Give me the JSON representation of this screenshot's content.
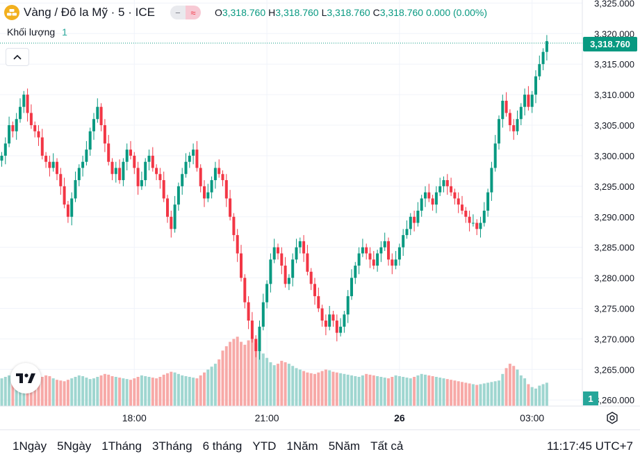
{
  "legend": {
    "symbol_title": "Vàng / Đô la Mỹ · 5 · ICE",
    "o_label": "O",
    "o_value": "3,318.760",
    "h_label": "H",
    "h_value": "3,318.760",
    "l_label": "L",
    "l_value": "3,318.760",
    "c_label": "C",
    "c_value": "3,318.760",
    "change": "0.000 (0.00%)",
    "pill_left": "−",
    "pill_right": "≈"
  },
  "volume_legend": {
    "label": "Khối lượng",
    "value": "1"
  },
  "last_price_tag": "3,318.760",
  "volume_tag": "1",
  "time_ranges": [
    "1Ngày",
    "5Ngày",
    "1Tháng",
    "3Tháng",
    "6 tháng",
    "YTD",
    "1Năm",
    "5Năm",
    "Tất cả"
  ],
  "clock": "11:17:45 UTC+7",
  "icons": {
    "logo": "gold-symbol-icon",
    "collapse": "chevron-up-icon",
    "brand": "tradingview-logo",
    "settings": "gear-icon"
  },
  "colors": {
    "up": "#089981",
    "down": "#f23645",
    "up_volume": "#9fd6d0",
    "down_volume": "#f7a9a7",
    "grid": "#f0f3fa"
  },
  "chart_data": {
    "type": "candlestick",
    "interval": "5",
    "y_ticks": [
      "3,260.000",
      "3,265.000",
      "3,270.000",
      "3,275.000",
      "3,280.000",
      "3,285.000",
      "3,290.000",
      "3,295.000",
      "3,300.000",
      "3,305.000",
      "3,310.000",
      "3,315.000",
      "3,320.000",
      "3,325.000"
    ],
    "ylim": [
      3259,
      3325.5
    ],
    "x_ticks": [
      "18:00",
      "21:00",
      "26",
      "03:00"
    ],
    "x_tick_bar_index": [
      36,
      72,
      108,
      144
    ],
    "closes": [
      3300,
      3302,
      3305,
      3304,
      3306,
      3308,
      3310,
      3307,
      3305,
      3304,
      3303,
      3300,
      3299,
      3298,
      3299,
      3297,
      3295,
      3292,
      3290,
      3293,
      3296,
      3298,
      3299,
      3301,
      3304,
      3306,
      3308,
      3305,
      3302,
      3299,
      3297,
      3298,
      3296,
      3299,
      3301,
      3300,
      3298,
      3295,
      3296,
      3299,
      3300,
      3298,
      3297,
      3296,
      3293,
      3290,
      3288,
      3292,
      3295,
      3297,
      3299,
      3300,
      3301,
      3298,
      3295,
      3293,
      3294,
      3296,
      3298,
      3297,
      3296,
      3293,
      3290,
      3287,
      3284,
      3280,
      3276,
      3273,
      3270,
      3268,
      3272,
      3276,
      3279,
      3283,
      3285,
      3284,
      3282,
      3279,
      3280,
      3283,
      3285,
      3286,
      3284,
      3281,
      3279,
      3277,
      3275,
      3273,
      3272,
      3274,
      3273,
      3271,
      3272,
      3274,
      3277,
      3280,
      3282,
      3284,
      3285,
      3284,
      3283,
      3282,
      3284,
      3285,
      3286,
      3283,
      3282,
      3283,
      3285,
      3287,
      3288,
      3290,
      3289,
      3291,
      3293,
      3294,
      3293,
      3292,
      3294,
      3295,
      3296,
      3295,
      3294,
      3293,
      3292,
      3291,
      3290,
      3289,
      3289,
      3288,
      3289,
      3291,
      3294,
      3298,
      3302,
      3306,
      3309,
      3307,
      3305,
      3304,
      3306,
      3308,
      3310,
      3308,
      3310,
      3313,
      3315,
      3317,
      3318.76
    ],
    "volumes": [
      38,
      40,
      42,
      41,
      45,
      47,
      44,
      43,
      40,
      39,
      37,
      40,
      42,
      41,
      38,
      36,
      35,
      34,
      36,
      38,
      40,
      42,
      41,
      39,
      37,
      38,
      40,
      42,
      44,
      43,
      41,
      40,
      39,
      38,
      37,
      36,
      38,
      40,
      42,
      41,
      40,
      39,
      38,
      40,
      43,
      45,
      47,
      46,
      44,
      42,
      41,
      40,
      39,
      38,
      42,
      46,
      50,
      54,
      58,
      64,
      76,
      82,
      88,
      92,
      95,
      88,
      84,
      90,
      94,
      86,
      80,
      72,
      66,
      60,
      56,
      58,
      62,
      60,
      58,
      55,
      52,
      50,
      48,
      46,
      45,
      44,
      46,
      48,
      50,
      49,
      47,
      46,
      45,
      44,
      43,
      42,
      41,
      40,
      42,
      44,
      43,
      42,
      41,
      40,
      39,
      38,
      40,
      42,
      41,
      40,
      39,
      38,
      40,
      42,
      44,
      43,
      42,
      41,
      40,
      39,
      38,
      37,
      36,
      35,
      34,
      33,
      32,
      31,
      30,
      29,
      30,
      31,
      32,
      33,
      34,
      35,
      44,
      52,
      58,
      55,
      50,
      42,
      38,
      30,
      26,
      24,
      28,
      30,
      32,
      29,
      31,
      34,
      33,
      32,
      1
    ]
  }
}
